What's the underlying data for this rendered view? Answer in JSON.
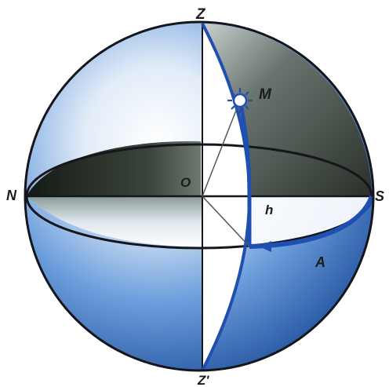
{
  "labels": {
    "zenith": "Z",
    "nadir": "Z'",
    "north": "N",
    "south": "S",
    "star": "M",
    "center": "O",
    "altitude": "h",
    "azimuth": "A"
  },
  "colors": {
    "sphere_blue": "#2f6fc4",
    "sphere_light": "#eef4fb",
    "shadow": "#232a22",
    "outline": "#15151c",
    "arc": "#1f4fb0",
    "white": "#ffffff"
  }
}
